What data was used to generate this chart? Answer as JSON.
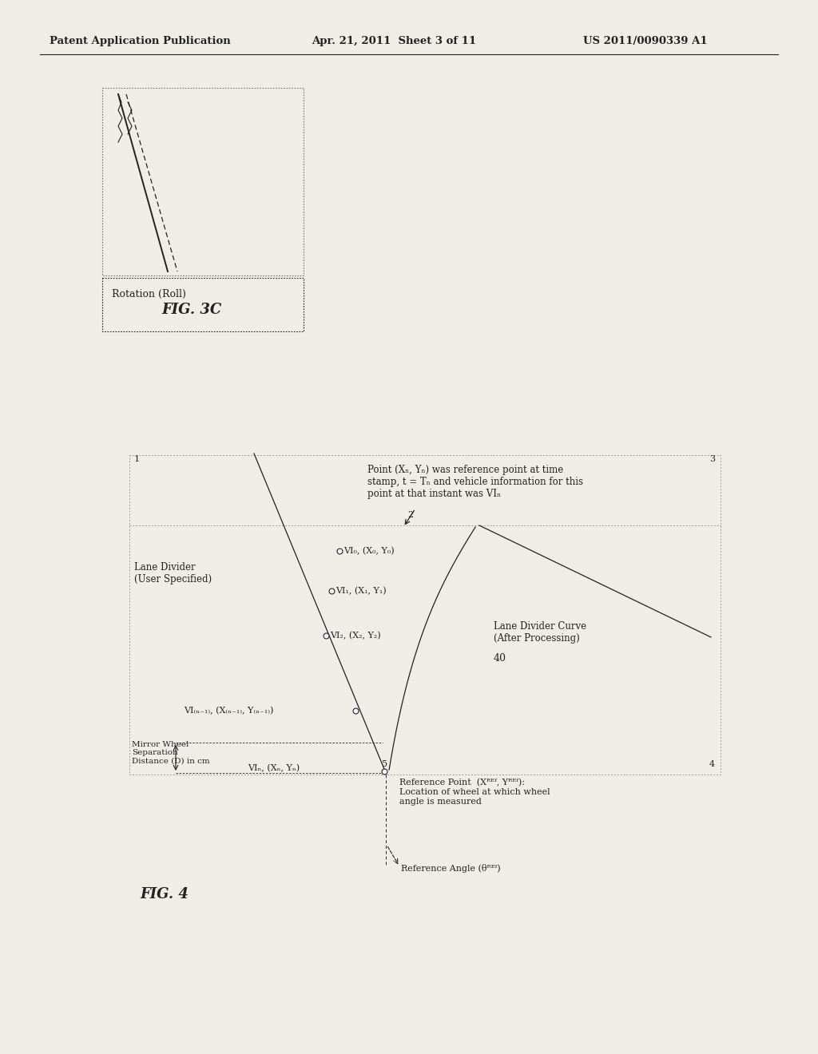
{
  "bg_color": "#f0ede8",
  "header_left": "Patent Application Publication",
  "header_mid": "Apr. 21, 2011  Sheet 3 of 11",
  "header_right": "US 2011/0090339 A1",
  "fig3c_label": "Rotation (Roll)",
  "fig3c_name": "FIG. 3C",
  "fig4_name": "FIG. 4",
  "annotation_top": "Point (Xₙ, Yₙ) was reference point at time\nstamp, t = Tₙ and vehicle information for this\npoint at that instant was VIₙ",
  "label_lane_divider": "Lane Divider\n(User Specified)",
  "label_curve": "Lane Divider Curve\n(After Processing)",
  "label_40": "40",
  "label_vi0": "VI₀, (X₀, Y₀)",
  "label_vi1": "VI₁, (X₁, Y₁)",
  "label_vi2": "VI₂, (X₂, Y₂)",
  "label_viN1": "VI₍ₙ₋₁₎, (X₍ₙ₋₁₎, Y₍ₙ₋₁₎)",
  "label_viN": "VIₙ, (Xₙ, Yₙ)",
  "label_mirror": "Mirror Wheel\nSeparation\nDistance (D) in cm",
  "label_refpoint": "Reference Point  (Xᴿᴱᶠ, Yᴿᴱᶠ):\nLocation of wheel at which wheel\nangle is measured",
  "label_refangle": "Reference Angle (θᴿᴱᶠ)"
}
